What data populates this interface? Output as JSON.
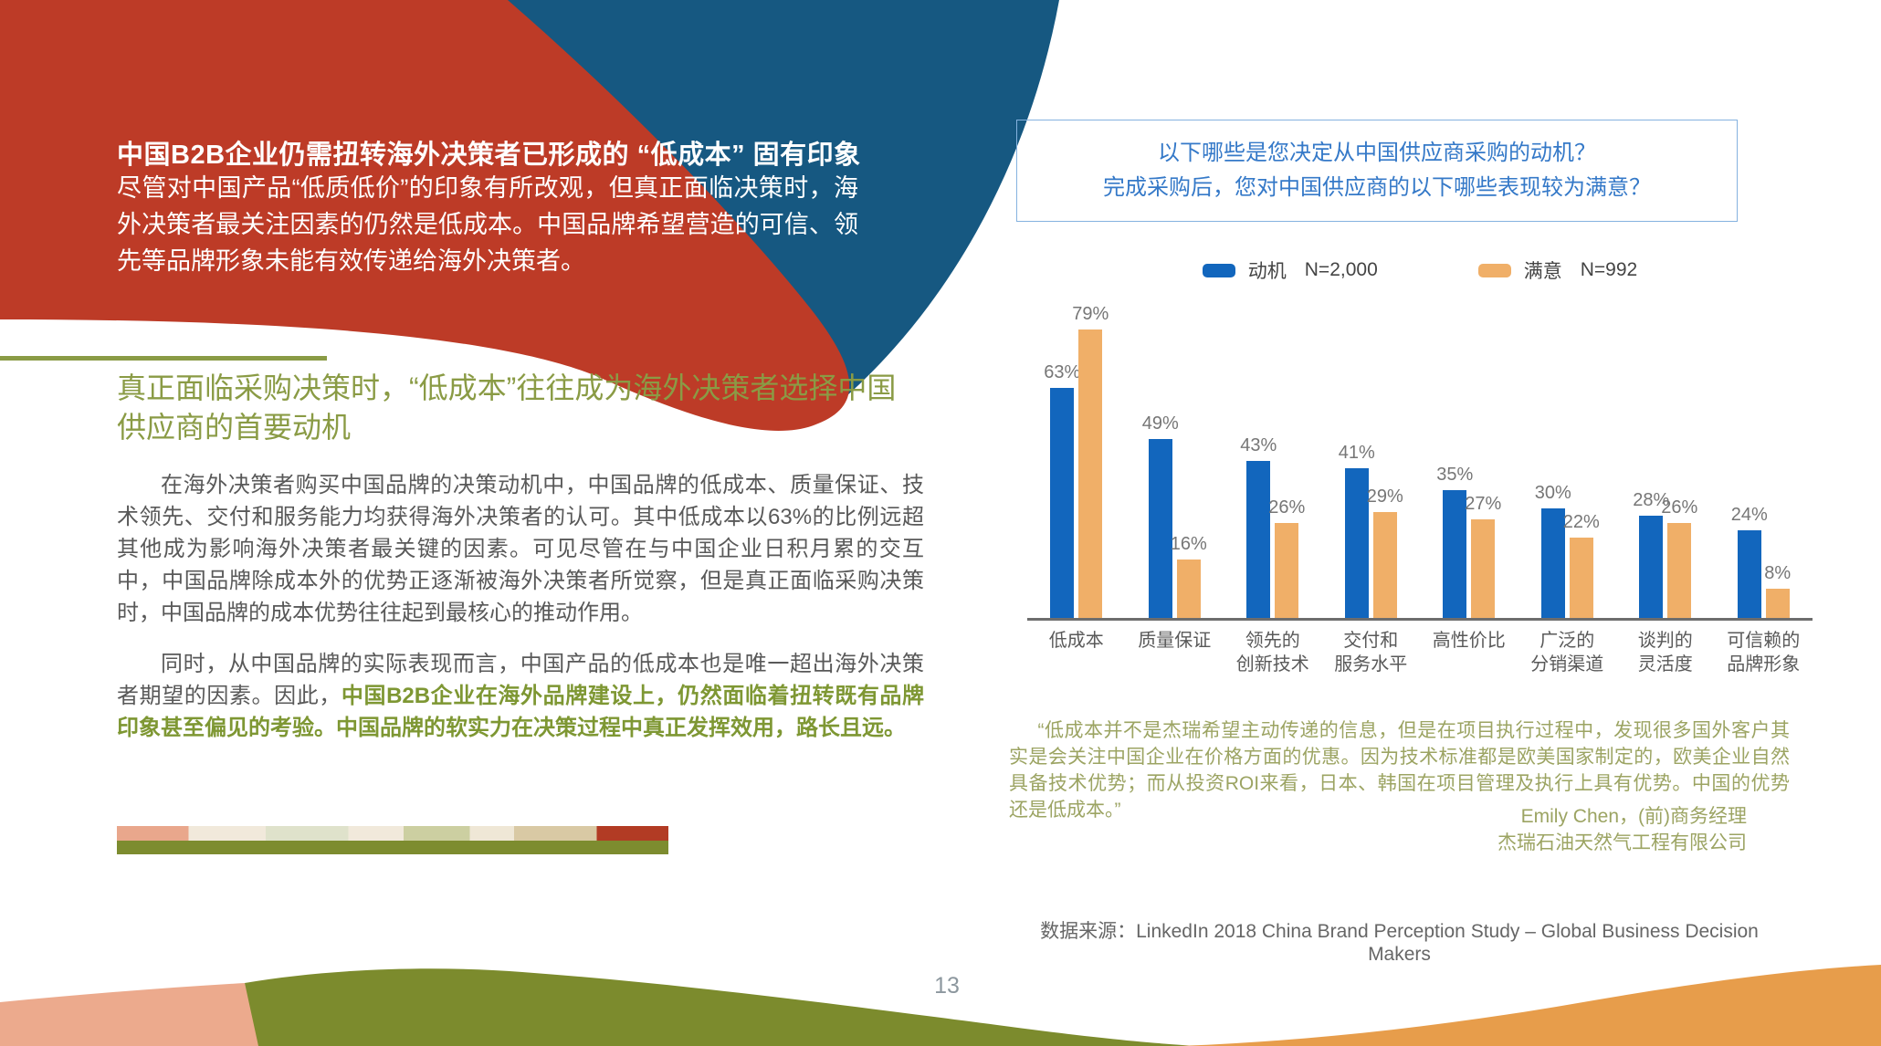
{
  "page": {
    "number": "13"
  },
  "left": {
    "headline": "中国B2B企业仍需扭转海外决策者已形成的 “低成本” 固有印象",
    "intro": "尽管对中国产品“低质低价”的印象有所改观，但真正面临决策时，海外决策者最关注因素的仍然是低成本。中国品牌希望营造的可信、领先等品牌形象未能有效传递给海外决策者。",
    "section_title": "真正面临采购决策时，“低成本”往往成为海外决策者选择中国供应商的首要动机",
    "para1": "在海外决策者购买中国品牌的决策动机中，中国品牌的低成本、质量保证、技术领先、交付和服务能力均获得海外决策者的认可。其中低成本以63%的比例远超其他成为影响海外决策者最关键的因素。可见尽管在与中国企业日积月累的交互中，中国品牌除成本外的优势正逐渐被海外决策者所觉察，但是真正面临采购决策时，中国品牌的成本优势往往起到最核心的推动作用。",
    "para2_normal": "同时，从中国品牌的实际表现而言，中国产品的低成本也是唯一超出海外决策者期望的因素。因此，",
    "para2_bold": "中国B2B企业在海外品牌建设上，仍然面临着扭转既有品牌印象甚至偏见的考验。中国品牌的软实力在决策过程中真正发挥效用，路长且远。"
  },
  "right": {
    "question_line1": "以下哪些是您决定从中国供应商采购的动机？",
    "question_line2": "完成采购后，您对中国供应商的以下哪些表现较为满意？",
    "quote": "“低成本并不是杰瑞希望主动传递的信息，但是在项目执行过程中，发现很多国外客户其实是会关注中国企业在价格方面的优惠。因为技术标准都是欧美国家制定的，欧美企业自然具备技术优势；而从投资ROI来看，日本、韩国在项目管理及执行上具有优势。中国的优势还是低成本。”",
    "attribution_line1": "Emily Chen，(前)商务经理",
    "attribution_line2": "杰瑞石油天然气工程有限公司",
    "source": "数据来源：LinkedIn 2018 China Brand Perception Study – Global Business Decision Makers"
  },
  "chart_data": {
    "type": "bar",
    "title": "以下哪些是您决定从中国供应商采购的动机？完成采购后，您对中国供应商的以下哪些表现较为满意？",
    "categories": [
      "低成本",
      "质量保证",
      "领先的\n创新技术",
      "交付和\n服务水平",
      "高性价比",
      "广泛的\n分销渠道",
      "谈判的\n灵活度",
      "可信赖的\n品牌形象"
    ],
    "series": [
      {
        "name": "动机",
        "n_label": "N=2,000",
        "color": "#1266BD",
        "values": [
          63,
          49,
          43,
          41,
          35,
          30,
          28,
          24
        ]
      },
      {
        "name": "满意",
        "n_label": "N=992",
        "color": "#F0AF68",
        "values": [
          79,
          16,
          26,
          29,
          27,
          22,
          26,
          8
        ]
      }
    ],
    "value_suffix": "%",
    "ylim": [
      0,
      80
    ],
    "grid": false,
    "y_axis_visible": false,
    "legend_position": "top",
    "value_labels": "above bars"
  },
  "colors": {
    "red_blob": "#BD3B27",
    "blue_wedge": "#165881",
    "olive_wave": "#7C8B2D",
    "orange_wave": "#E79D4B",
    "salmon_wedge": "#ECAA8D",
    "heading_green": "#8A9B45",
    "bold_green": "#7E9733",
    "quote_green": "#9CA463",
    "question_blue": "#3579C8",
    "bar_blue": "#1266BD",
    "bar_orange": "#F0AF68",
    "body_gray": "#595959"
  }
}
